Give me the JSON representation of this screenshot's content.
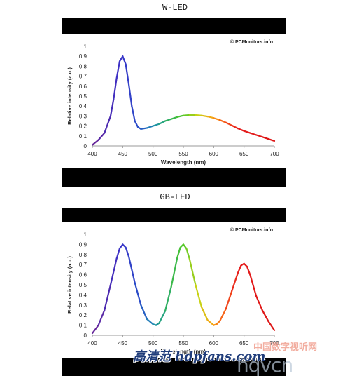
{
  "figures": [
    {
      "heading": "W-LED"
    },
    {
      "heading": "GB-LED"
    }
  ],
  "watermarks": {
    "cn_site": "中国数字视听网",
    "site_logo": "hqvcn",
    "hdp": "高清范 hdpfans.com"
  },
  "chart_data": [
    {
      "type": "line",
      "title": "",
      "credit": "© PCMonitors.info",
      "xlabel": "Wavelength (nm)",
      "ylabel": "Relative intensity (a.u.)",
      "xlim": [
        400,
        700
      ],
      "ylim": [
        0,
        1
      ],
      "xticks": [
        "400",
        "450",
        "500",
        "550",
        "600",
        "650",
        "700"
      ],
      "yticks": [
        "0",
        "0.1",
        "0.2",
        "0.3",
        "0.4",
        "0.5",
        "0.6",
        "0.7",
        "0.8",
        "0.9",
        "1"
      ],
      "grid": false,
      "series": [
        {
          "x": [
            400,
            410,
            420,
            430,
            435,
            440,
            445,
            450,
            455,
            460,
            465,
            470,
            475,
            480,
            490,
            500,
            510,
            520,
            530,
            540,
            550,
            560,
            570,
            580,
            590,
            600,
            610,
            620,
            630,
            640,
            650,
            660,
            670,
            680,
            690,
            700
          ],
          "y": [
            0.01,
            0.06,
            0.13,
            0.3,
            0.47,
            0.68,
            0.85,
            0.9,
            0.82,
            0.62,
            0.4,
            0.25,
            0.19,
            0.17,
            0.18,
            0.2,
            0.22,
            0.25,
            0.27,
            0.29,
            0.305,
            0.31,
            0.31,
            0.305,
            0.295,
            0.28,
            0.26,
            0.235,
            0.205,
            0.175,
            0.15,
            0.13,
            0.11,
            0.09,
            0.07,
            0.05
          ]
        }
      ]
    },
    {
      "type": "line",
      "title": "",
      "credit": "© PCMonitors.info",
      "xlabel": "Wavelength (nm)",
      "ylabel": "Relative intensity (a.u.)",
      "xlim": [
        400,
        700
      ],
      "ylim": [
        0,
        1
      ],
      "xticks": [
        "400",
        "450",
        "500",
        "550",
        "600",
        "650",
        "700"
      ],
      "yticks": [
        "0",
        "0.1",
        "0.2",
        "0.3",
        "0.4",
        "0.5",
        "0.6",
        "0.7",
        "0.8",
        "0.9",
        "1"
      ],
      "grid": false,
      "series": [
        {
          "x": [
            400,
            410,
            420,
            430,
            440,
            445,
            450,
            455,
            460,
            470,
            480,
            490,
            500,
            505,
            510,
            520,
            530,
            540,
            545,
            550,
            555,
            560,
            570,
            580,
            590,
            600,
            605,
            610,
            620,
            630,
            640,
            645,
            650,
            655,
            660,
            670,
            680,
            690,
            700
          ],
          "y": [
            0.02,
            0.1,
            0.25,
            0.5,
            0.76,
            0.86,
            0.9,
            0.87,
            0.78,
            0.52,
            0.3,
            0.16,
            0.11,
            0.1,
            0.12,
            0.24,
            0.48,
            0.77,
            0.87,
            0.9,
            0.86,
            0.76,
            0.5,
            0.28,
            0.15,
            0.1,
            0.11,
            0.14,
            0.26,
            0.44,
            0.62,
            0.69,
            0.71,
            0.68,
            0.6,
            0.39,
            0.25,
            0.14,
            0.05
          ]
        }
      ]
    }
  ]
}
